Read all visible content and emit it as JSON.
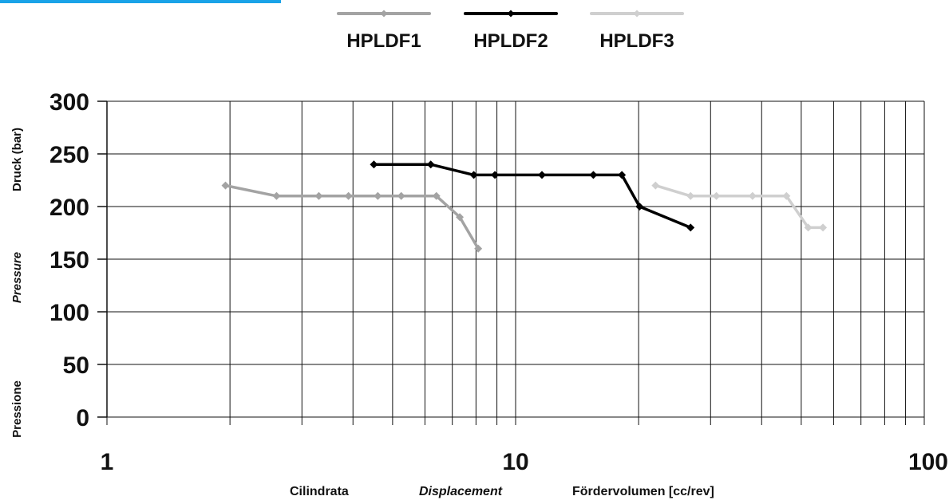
{
  "chart_data": {
    "type": "line",
    "x_scale": "log",
    "xlim": [
      1,
      100
    ],
    "ylim": [
      0,
      300
    ],
    "xticks": [
      "1",
      "10",
      "100"
    ],
    "yticks": [
      "0",
      "50",
      "100",
      "150",
      "200",
      "250",
      "300"
    ],
    "xlabel_parts": [
      "Cilindrata",
      "Displacement",
      "Fördervolumen [cc/rev]"
    ],
    "ylabel_parts": [
      "Pressione",
      "Pressure",
      "Druck (bar)"
    ],
    "grid": true,
    "legend_position": "top-center",
    "series": [
      {
        "name": "HPLDF1",
        "color": "#a3a3a3",
        "x": [
          1.95,
          2.6,
          3.3,
          3.9,
          4.6,
          5.25,
          6.4,
          7.3,
          8.1
        ],
        "y": [
          220,
          210,
          210,
          210,
          210,
          210,
          210,
          190,
          160
        ]
      },
      {
        "name": "HPLDF2",
        "color": "#000000",
        "x": [
          4.5,
          6.2,
          7.9,
          8.9,
          11.6,
          15.5,
          18.2,
          20.1,
          26.8
        ],
        "y": [
          240,
          240,
          230,
          230,
          230,
          230,
          230,
          200,
          180
        ]
      },
      {
        "name": "HPLDF3",
        "color": "#cfcfcf",
        "x": [
          22.0,
          26.8,
          31.0,
          38.0,
          46.0,
          52.0,
          56.5
        ],
        "y": [
          220,
          210,
          210,
          210,
          210,
          180,
          180
        ]
      }
    ]
  }
}
